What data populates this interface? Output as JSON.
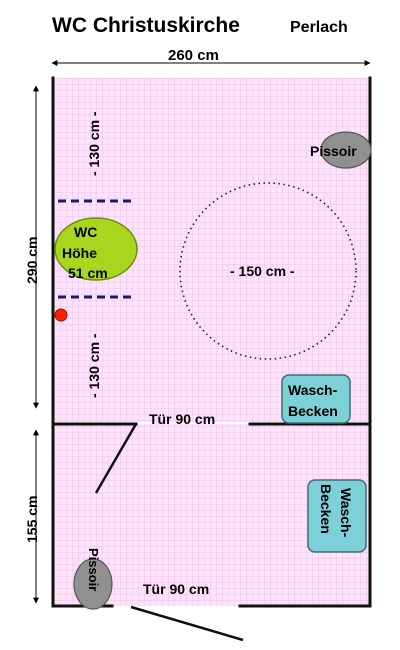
{
  "title": "WC Christuskirche",
  "subtitle": "Perlach",
  "dims": {
    "width_top": "260 cm",
    "height_upper": "290 cm",
    "height_lower": "155 cm",
    "wc_upper_gap": "- 130 cm -",
    "wc_lower_gap": "- 130 cm -",
    "turning_circle": "- 150 cm -"
  },
  "fixtures": {
    "pissoir_upper": "Pissoir",
    "pissoir_lower": "Pissoir",
    "wc_line1": "WC",
    "wc_line2": "Höhe",
    "wc_line3": "51 cm",
    "sink_upper_line1": "Wasch-",
    "sink_upper_line2": "Becken",
    "sink_lower_line1": "Wasch-",
    "sink_lower_line2": "Becken"
  },
  "doors": {
    "door_inner": "Tür 90 cm",
    "door_outer": "Tür 90 cm"
  },
  "colors": {
    "floor": "#fbe4f7",
    "grid": "#efb7e9",
    "wall": "#111111",
    "wc": "#a8d51e",
    "pissoir": "#909090",
    "sink": "#7dcfd8",
    "grab_bar": "#1a1a6e",
    "emergency_button": "#ff2000"
  }
}
